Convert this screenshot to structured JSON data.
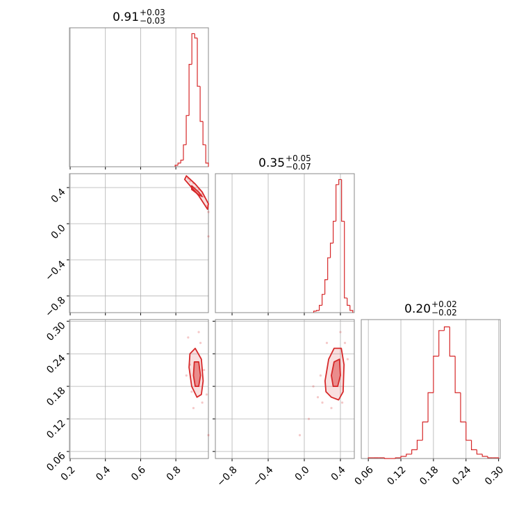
{
  "chart_data": {
    "type": "corner",
    "color": "#d62728",
    "grid": true,
    "params": [
      {
        "title": "0.91",
        "title_plus": "+0.03",
        "title_minus": "−0.03",
        "lim": [
          0.196,
          0.985
        ],
        "ticks": [
          0.2,
          0.4,
          0.6,
          0.8
        ],
        "bins": [
          0.796,
          0.812,
          0.828,
          0.843,
          0.859,
          0.875,
          0.891,
          0.907,
          0.922,
          0.938,
          0.954,
          0.97,
          0.985
        ],
        "counts": [
          2,
          5,
          9,
          30,
          70,
          140,
          182,
          176,
          110,
          62,
          30,
          5
        ],
        "countlim": [
          0,
          190
        ]
      },
      {
        "title": "0.35",
        "title_plus": "+0.05",
        "title_minus": "−0.07",
        "lim": [
          -0.985,
          0.554
        ],
        "ticks": [
          {
            "value": -0.8,
            "label": "−0.8"
          },
          {
            "value": -0.4,
            "label": "−0.4"
          },
          {
            "value": 0,
            "label": "0.0"
          },
          0.4
        ],
        "bins": [
          0.104,
          0.135,
          0.166,
          0.197,
          0.228,
          0.259,
          0.289,
          0.32,
          0.351,
          0.382,
          0.413,
          0.444,
          0.475,
          0.506,
          0.537
        ],
        "counts": [
          2,
          3,
          10,
          25,
          45,
          75,
          95,
          125,
          175,
          182,
          125,
          20,
          10,
          3
        ],
        "countlim": [
          0,
          190
        ]
      },
      {
        "title": "0.20",
        "title_plus": "+0.02",
        "title_minus": "−0.02",
        "lim": [
          0.047,
          0.303
        ],
        "ticks": [
          0.06,
          0.12,
          0.18,
          0.24,
          {
            "value": 0.3,
            "label": "0.30"
          }
        ],
        "bins": [
          0.06,
          0.07,
          0.08,
          0.09,
          0.1,
          0.11,
          0.12,
          0.13,
          0.14,
          0.15,
          0.16,
          0.17,
          0.18,
          0.19,
          0.2,
          0.21,
          0.22,
          0.23,
          0.24,
          0.25,
          0.26,
          0.27,
          0.28,
          0.29,
          0.3
        ],
        "counts": [
          1,
          1,
          1,
          0,
          0,
          1,
          3,
          6,
          12,
          25,
          50,
          90,
          140,
          175,
          180,
          140,
          90,
          50,
          25,
          12,
          6,
          3,
          1,
          1
        ],
        "countlim": [
          0,
          190
        ]
      }
    ],
    "pairs": [
      {
        "points": {
          "x": [
            0.87,
            0.88,
            0.9,
            0.93,
            0.96,
            0.98,
            0.985,
            0.95,
            0.985
          ],
          "y": [
            0.5,
            0.47,
            0.45,
            0.38,
            0.3,
            0.2,
            -0.14,
            0.33,
            0.13
          ]
        },
        "contours": [
          {
            "x": [
              0.86,
              0.91,
              0.95,
              0.985,
              0.98,
              0.93,
              0.89,
              0.85
            ],
            "y": [
              0.53,
              0.44,
              0.35,
              0.22,
              0.16,
              0.31,
              0.4,
              0.49
            ]
          },
          {
            "x": [
              0.89,
              0.93,
              0.95,
              0.93,
              0.89
            ],
            "y": [
              0.42,
              0.35,
              0.3,
              0.32,
              0.38
            ]
          }
        ]
      },
      {
        "points": {
          "x": [
            0.87,
            0.88,
            0.89,
            0.94,
            0.95,
            0.96,
            0.975,
            0.9,
            0.985,
            0.93,
            0.86
          ],
          "y": [
            0.27,
            0.22,
            0.17,
            0.26,
            0.15,
            0.21,
            0.165,
            0.14,
            0.09,
            0.28,
            0.2
          ]
        },
        "contours": [
          {
            "x": [
              0.88,
              0.91,
              0.945,
              0.955,
              0.945,
              0.92,
              0.89,
              0.875
            ],
            "y": [
              0.24,
              0.25,
              0.23,
              0.19,
              0.165,
              0.16,
              0.18,
              0.215
            ]
          },
          {
            "x": [
              0.905,
              0.93,
              0.94,
              0.93,
              0.91,
              0.9
            ],
            "y": [
              0.225,
              0.225,
              0.2,
              0.18,
              0.18,
              0.2
            ]
          }
        ]
      },
      {
        "points": {
          "x": [
            0.1,
            0.15,
            0.2,
            0.45,
            0.48,
            0.25,
            0.4,
            0.3,
            0.05,
            -0.05,
            0.42,
            0.18
          ],
          "y": [
            0.18,
            0.16,
            0.15,
            0.26,
            0.23,
            0.26,
            0.28,
            0.14,
            0.12,
            0.09,
            0.15,
            0.2
          ]
        },
        "contours": [
          {
            "x": [
              0.23,
              0.27,
              0.33,
              0.41,
              0.44,
              0.43,
              0.38,
              0.3,
              0.24
            ],
            "y": [
              0.19,
              0.23,
              0.25,
              0.25,
              0.22,
              0.17,
              0.155,
              0.16,
              0.17
            ]
          },
          {
            "x": [
              0.3,
              0.33,
              0.39,
              0.4,
              0.37,
              0.32
            ],
            "y": [
              0.2,
              0.225,
              0.23,
              0.2,
              0.18,
              0.18
            ]
          }
        ]
      }
    ]
  }
}
